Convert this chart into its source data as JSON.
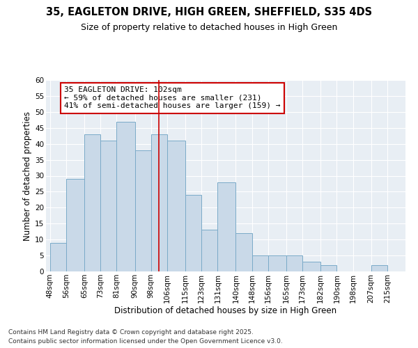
{
  "title": "35, EAGLETON DRIVE, HIGH GREEN, SHEFFIELD, S35 4DS",
  "subtitle": "Size of property relative to detached houses in High Green",
  "xlabel": "Distribution of detached houses by size in High Green",
  "ylabel": "Number of detached properties",
  "footnote1": "Contains HM Land Registry data © Crown copyright and database right 2025.",
  "footnote2": "Contains public sector information licensed under the Open Government Licence v3.0.",
  "annotation_line1": "35 EAGLETON DRIVE: 102sqm",
  "annotation_line2": "← 59% of detached houses are smaller (231)",
  "annotation_line3": "41% of semi-detached houses are larger (159) →",
  "property_size": 102,
  "bar_left_edges": [
    48,
    56,
    65,
    73,
    81,
    90,
    98,
    106,
    115,
    123,
    131,
    140,
    148,
    156,
    165,
    173,
    182,
    190,
    198,
    207,
    215
  ],
  "bar_heights": [
    9,
    29,
    43,
    41,
    47,
    38,
    43,
    41,
    24,
    13,
    28,
    12,
    5,
    5,
    5,
    3,
    2,
    0,
    0,
    2,
    0
  ],
  "bar_color": "#c9d9e8",
  "bar_edgecolor": "#7aaac8",
  "vline_color": "#cc0000",
  "vline_x": 102,
  "annotation_box_edgecolor": "#cc0000",
  "background_color": "#e8eef4",
  "ylim": [
    0,
    60
  ],
  "yticks": [
    0,
    5,
    10,
    15,
    20,
    25,
    30,
    35,
    40,
    45,
    50,
    55,
    60
  ],
  "tick_labels": [
    "48sqm",
    "56sqm",
    "65sqm",
    "73sqm",
    "81sqm",
    "90sqm",
    "98sqm",
    "106sqm",
    "115sqm",
    "123sqm",
    "131sqm",
    "140sqm",
    "148sqm",
    "156sqm",
    "165sqm",
    "173sqm",
    "182sqm",
    "190sqm",
    "198sqm",
    "207sqm",
    "215sqm"
  ],
  "title_fontsize": 10.5,
  "subtitle_fontsize": 9,
  "axis_label_fontsize": 8.5,
  "tick_fontsize": 7.5,
  "annotation_fontsize": 8,
  "footnote_fontsize": 6.5
}
